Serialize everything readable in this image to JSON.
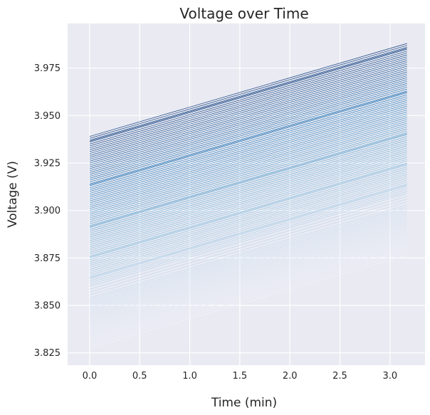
{
  "chart_data": {
    "type": "line",
    "title": "Voltage over Time",
    "xlabel": "Time (min)",
    "ylabel": "Voltage (V)",
    "xlim": [
      -0.22,
      3.35
    ],
    "ylim": [
      3.8185,
      3.9985
    ],
    "xticks": [
      "0.0",
      "0.5",
      "1.0",
      "1.5",
      "2.0",
      "2.5",
      "3.0"
    ],
    "xtick_values": [
      0.0,
      0.5,
      1.0,
      1.5,
      2.0,
      2.5,
      3.0
    ],
    "yticks": [
      "3.825",
      "3.850",
      "3.875",
      "3.900",
      "3.925",
      "3.950",
      "3.975"
    ],
    "ytick_values": [
      3.825,
      3.85,
      3.875,
      3.9,
      3.925,
      3.95,
      3.975
    ],
    "grid": true,
    "background": "#eaeaf2",
    "grid_color": "#ffffff",
    "colormap": "Blues",
    "x_start": 0.0,
    "x_end": 3.17,
    "series_start_values": [
      3.8275,
      3.829,
      3.8305,
      3.832,
      3.833,
      3.834,
      3.835,
      3.836,
      3.837,
      3.838,
      3.839,
      3.84,
      3.841,
      3.842,
      3.843,
      3.844,
      3.845,
      3.846,
      3.847,
      3.848,
      3.849,
      3.85,
      3.851,
      3.852,
      3.853,
      3.854,
      3.8555,
      3.857,
      3.8585,
      3.86,
      3.861,
      3.862,
      3.863,
      3.864,
      3.8645,
      3.865,
      3.866,
      3.867,
      3.868,
      3.869,
      3.87,
      3.871,
      3.872,
      3.873,
      3.874,
      3.875,
      3.8755,
      3.876,
      3.877,
      3.878,
      3.879,
      3.88,
      3.881,
      3.882,
      3.883,
      3.884,
      3.885,
      3.886,
      3.887,
      3.888,
      3.889,
      3.89,
      3.891,
      3.8915,
      3.892,
      3.893,
      3.894,
      3.895,
      3.896,
      3.897,
      3.898,
      3.899,
      3.9,
      3.901,
      3.902,
      3.903,
      3.904,
      3.905,
      3.906,
      3.907,
      3.908,
      3.909,
      3.91,
      3.911,
      3.912,
      3.913,
      3.9135,
      3.914,
      3.915,
      3.916,
      3.917,
      3.918,
      3.919,
      3.92,
      3.921,
      3.922,
      3.923,
      3.924,
      3.925,
      3.926,
      3.927,
      3.928,
      3.929,
      3.93,
      3.931,
      3.932,
      3.933,
      3.934,
      3.935,
      3.936,
      3.9365,
      3.937,
      3.938,
      3.939
    ],
    "slope_per_min": 0.01545
  }
}
